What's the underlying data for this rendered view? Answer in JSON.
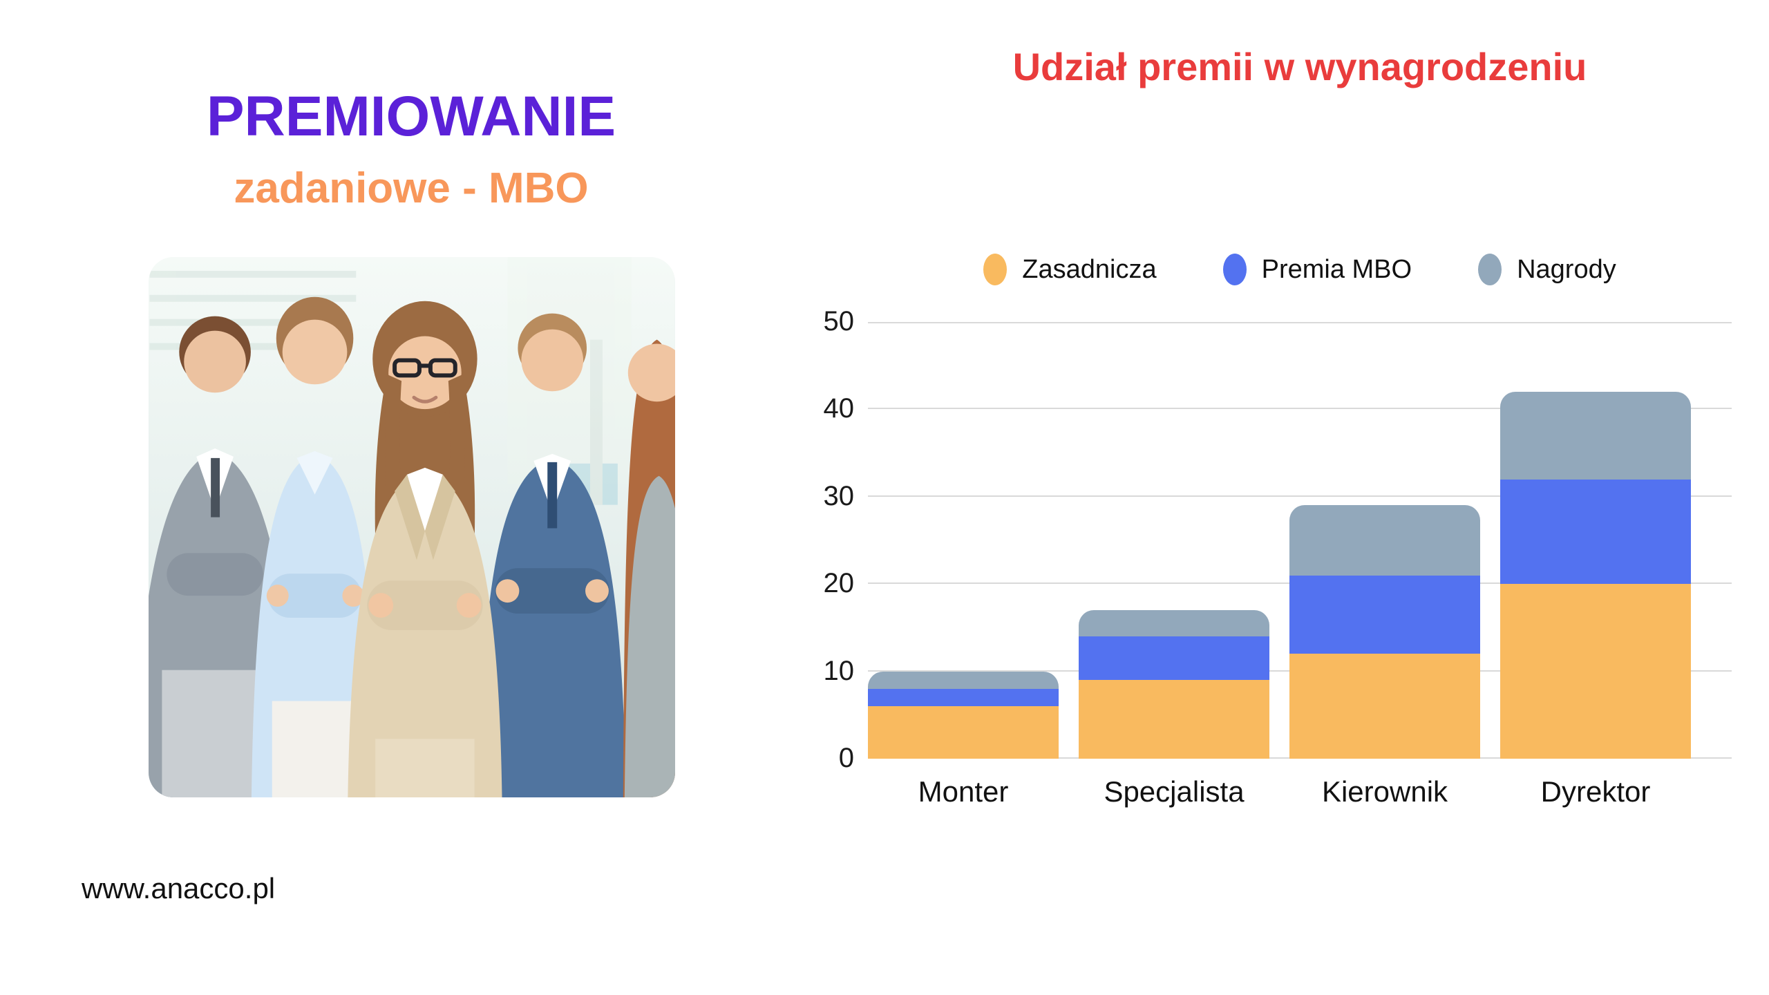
{
  "page": {
    "title": "PREMIOWANIE",
    "subtitle": "zadaniowe - MBO",
    "website": "www.anacco.pl"
  },
  "photo": {
    "description": "team-of-five-business-people-smiling-arms-crossed"
  },
  "colors": {
    "title_purple": "#5B21D8",
    "subtitle_orange": "#F8975A",
    "chart_title_red": "#E93C3C",
    "grid": "#D9D9D9",
    "text": "#111111"
  },
  "chart_data": {
    "type": "bar",
    "stacked": true,
    "title": "Udział premii w wynagrodzeniu",
    "categories": [
      "Monter",
      "Specjalista",
      "Kierownik",
      "Dyrektor"
    ],
    "series": [
      {
        "name": "Zasadnicza",
        "color": "#F9BA5F",
        "values": [
          6,
          9,
          12,
          20
        ]
      },
      {
        "name": "Premia MBO",
        "color": "#5372F0",
        "values": [
          2,
          5,
          9,
          12
        ]
      },
      {
        "name": "Nagrody",
        "color": "#92A8BB",
        "values": [
          2,
          3,
          8,
          10
        ]
      }
    ],
    "totals": [
      10,
      17,
      29,
      42
    ],
    "xlabel": "",
    "ylabel": "",
    "ylim": [
      0,
      50
    ],
    "yticks": [
      0,
      10,
      20,
      30,
      40,
      50
    ],
    "grid": "horizontal",
    "legend_position": "top"
  }
}
